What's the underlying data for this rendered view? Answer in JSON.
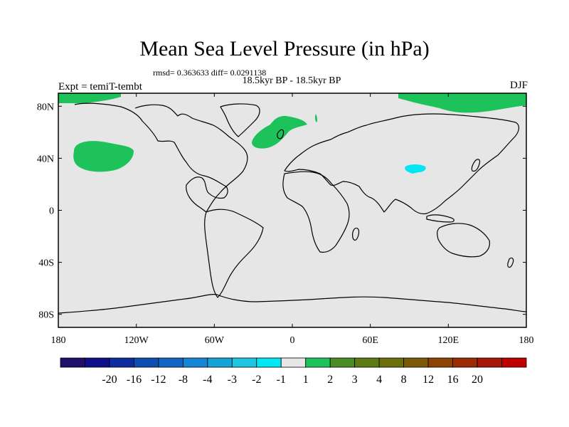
{
  "title": "Mean Sea Level Pressure (in hPa)",
  "stats": "rmsd= 0.363633 diff= 0.0291138",
  "subtitle": "18.5kyr BP - 18.5kyr BP",
  "left_label": "Expt = temiT-tembt",
  "right_label": "DJF",
  "map": {
    "lon_ticks": [
      "180",
      "120W",
      "60W",
      "0",
      "60E",
      "120E",
      "180"
    ],
    "lat_ticks": [
      "80N",
      "40N",
      "0",
      "40S",
      "80S"
    ],
    "background_color": "#e6e6e6",
    "coast_color": "#000000"
  },
  "colorbar": {
    "colors": [
      "#1f0f6b",
      "#100f8a",
      "#0e2e9d",
      "#0f4eb1",
      "#1366c4",
      "#1785d6",
      "#16a3d8",
      "#1ec5e0",
      "#00e6f2",
      "#e6e6e6",
      "#1ec25a",
      "#4a8c26",
      "#5d7a14",
      "#6d6f0a",
      "#7a5a07",
      "#8c4404",
      "#9b2c05",
      "#a6180a",
      "#bf0000"
    ],
    "labels": [
      "-20",
      "-16",
      "-12",
      "-8",
      "-4",
      "-3",
      "-2",
      "-1",
      "1",
      "2",
      "3",
      "4",
      "8",
      "12",
      "16",
      "20"
    ]
  },
  "regions": [
    {
      "name": "north-pacific-positive",
      "level": "1 to 2",
      "color": "#1ec25a"
    },
    {
      "name": "north-atlantic-positive",
      "level": "1 to 2",
      "color": "#1ec25a"
    },
    {
      "name": "arctic-siberia-positive",
      "level": "1 to 2",
      "color": "#1ec25a"
    },
    {
      "name": "tibet-negative",
      "level": "-2 to -1",
      "color": "#00e6f2"
    }
  ]
}
